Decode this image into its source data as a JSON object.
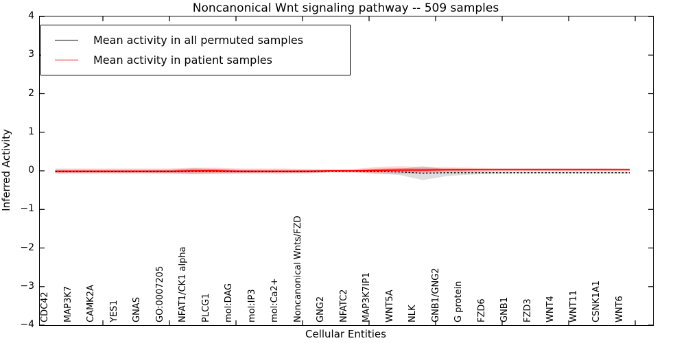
{
  "figure": {
    "title": "Noncanonical Wnt signaling pathway -- 509 samples",
    "xlabel": "Cellular Entities",
    "ylabel": "Inferred Activity"
  },
  "legend": {
    "entries": [
      {
        "label": "Mean activity in all permuted samples",
        "color": "#000000"
      },
      {
        "label": "Mean activity in patient samples",
        "color": "#ff0000"
      }
    ]
  },
  "axes": {
    "y_tick_values": [
      4,
      3,
      2,
      1,
      0,
      -1,
      -2,
      -3,
      -4
    ],
    "y_tick_labels": [
      "4",
      "3",
      "2",
      "1",
      "0",
      "−1",
      "−2",
      "−3",
      "−4"
    ],
    "ylim": [
      -4,
      4
    ]
  },
  "chart_data": {
    "type": "line",
    "title": "Noncanonical Wnt signaling pathway -- 509 samples",
    "xlabel": "Cellular Entities",
    "ylabel": "Inferred Activity",
    "ylim": [
      -4,
      4
    ],
    "grid": false,
    "legend_position": "upper left",
    "categories": [
      "CDC42",
      "MAP3K7",
      "CAMK2A",
      "YES1",
      "GNAS",
      "GO:0007205",
      "NFAT1/CK1 alpha",
      "PLCG1",
      "mol:DAG",
      "mol:IP3",
      "mol:Ca2+",
      "Noncanonical Wnts/FZD",
      "GNG2",
      "NFATC2",
      "MAP3K7IP1",
      "WNT5A",
      "NLK",
      "GNB1/GNG2",
      "G protein",
      "FZD6",
      "GNB1",
      "FZD3",
      "WNT4",
      "WNT11",
      "CSNK1A1",
      "WNT6"
    ],
    "series": [
      {
        "name": "Mean activity in all permuted samples",
        "color": "#000000",
        "line_style": "dashed",
        "values": [
          -0.02,
          -0.02,
          -0.02,
          -0.02,
          -0.02,
          -0.02,
          -0.01,
          -0.01,
          -0.02,
          -0.02,
          -0.02,
          -0.02,
          -0.01,
          -0.01,
          -0.02,
          -0.03,
          -0.06,
          -0.05,
          -0.05,
          -0.05,
          -0.05,
          -0.05,
          -0.05,
          -0.05,
          -0.05,
          -0.05
        ]
      },
      {
        "name": "Mean activity in patient samples",
        "color": "#ff0000",
        "line_style": "solid",
        "values": [
          -0.01,
          -0.01,
          -0.01,
          -0.01,
          -0.01,
          -0.01,
          0.0,
          0.0,
          -0.01,
          -0.01,
          -0.01,
          -0.01,
          0.0,
          0.0,
          0.01,
          0.02,
          0.02,
          0.03,
          0.03,
          0.03,
          0.03,
          0.03,
          0.03,
          0.03,
          0.03,
          0.03
        ]
      }
    ],
    "bands": [
      {
        "name": "permuted-std-band",
        "color": "rgba(0,0,0,0.13)",
        "center_series": 0,
        "half_widths": [
          0.03,
          0.03,
          0.03,
          0.03,
          0.03,
          0.04,
          0.08,
          0.06,
          0.04,
          0.03,
          0.03,
          0.04,
          0.03,
          0.02,
          0.05,
          0.08,
          0.18,
          0.09,
          0.05,
          0.03,
          0.02,
          0.02,
          0.02,
          0.02,
          0.02,
          0.02
        ]
      },
      {
        "name": "patient-std-outer-band",
        "color": "rgba(255,0,0,0.16)",
        "center_series": 1,
        "half_widths": [
          0.07,
          0.07,
          0.07,
          0.07,
          0.07,
          0.07,
          0.08,
          0.08,
          0.07,
          0.07,
          0.07,
          0.06,
          0.04,
          0.05,
          0.09,
          0.1,
          0.08,
          0.06,
          0.05,
          0.04,
          0.04,
          0.04,
          0.04,
          0.04,
          0.04,
          0.03
        ]
      },
      {
        "name": "patient-std-inner-band",
        "color": "rgba(255,0,0,0.30)",
        "center_series": 1,
        "half_widths": [
          0.035,
          0.035,
          0.035,
          0.035,
          0.035,
          0.035,
          0.04,
          0.04,
          0.035,
          0.035,
          0.035,
          0.03,
          0.02,
          0.025,
          0.045,
          0.05,
          0.04,
          0.03,
          0.025,
          0.02,
          0.02,
          0.02,
          0.02,
          0.02,
          0.02,
          0.015
        ]
      }
    ]
  }
}
